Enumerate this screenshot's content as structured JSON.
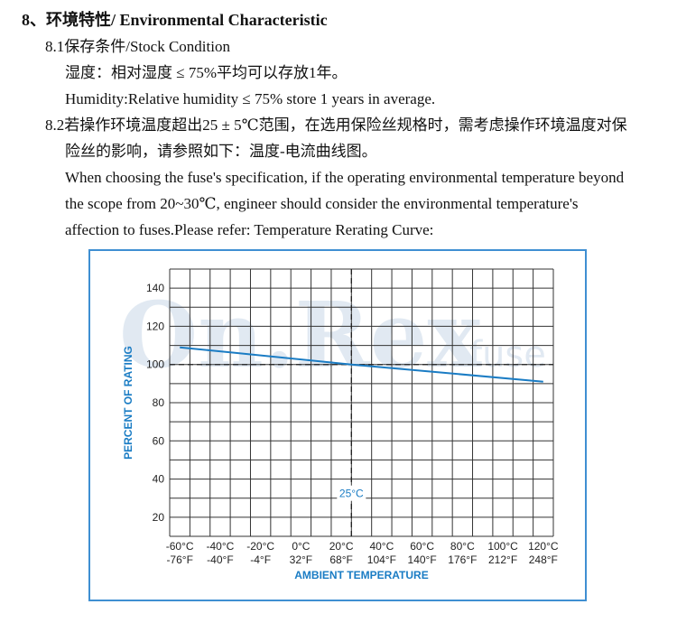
{
  "section": {
    "heading": "8、环境特性/ Environmental Characteristic",
    "stock_title": "8.1保存条件/Stock Condition",
    "stock_cn": "湿度：相对湿度 ≤ 75%平均可以存放1年。",
    "stock_en": "Humidity:Relative humidity ≤ 75% store 1 years in average.",
    "temp_cn_1": "8.2若操作环境温度超出25 ± 5℃范围，在选用保险丝规格时，需考虑操作环境温度对保",
    "temp_cn_2": "险丝的影响，请参照如下：温度-电流曲线图。",
    "temp_en_1": "When choosing the fuse's specification, if the operating environmental temperature beyond",
    "temp_en_2": "the scope from 20~30℃, engineer should consider the environmental temperature's",
    "temp_en_3": "affection to fuses.Please refer: Temperature Rerating Curve:"
  },
  "watermark": {
    "brand": "On.Rex",
    "suffix": "fuse"
  },
  "chart_data": {
    "type": "line",
    "title": "",
    "xlabel": "AMBIENT TEMPERATURE",
    "ylabel": "PERCENT OF RATING",
    "ylim": [
      10,
      150
    ],
    "xlim": [
      -65,
      125
    ],
    "y_ticks": [
      20,
      40,
      60,
      80,
      100,
      120,
      140
    ],
    "x_ticks": [
      -60,
      -40,
      -20,
      0,
      20,
      40,
      60,
      80,
      100,
      120
    ],
    "x_tick_labels_c": [
      "-60°C",
      "-40°C",
      "-20°C",
      "0°C",
      "20°C",
      "40°C",
      "60°C",
      "80°C",
      "100°C",
      "120°C"
    ],
    "x_tick_labels_f": [
      "-76°F",
      "-40°F",
      "-4°F",
      "32°F",
      "68°F",
      "104°F",
      "140°F",
      "176°F",
      "212°F",
      "248°F"
    ],
    "reference_x": 25,
    "reference_x_label": "25°C",
    "reference_y": 100,
    "grid": true,
    "series": [
      {
        "x": [
          -60,
          25,
          120
        ],
        "y": [
          109,
          100,
          91
        ]
      }
    ],
    "colors": {
      "curve": "#1a7cc4",
      "axis_label": "#1a7cc4",
      "frame": "#3f8fd2",
      "grid": "#333333"
    }
  }
}
